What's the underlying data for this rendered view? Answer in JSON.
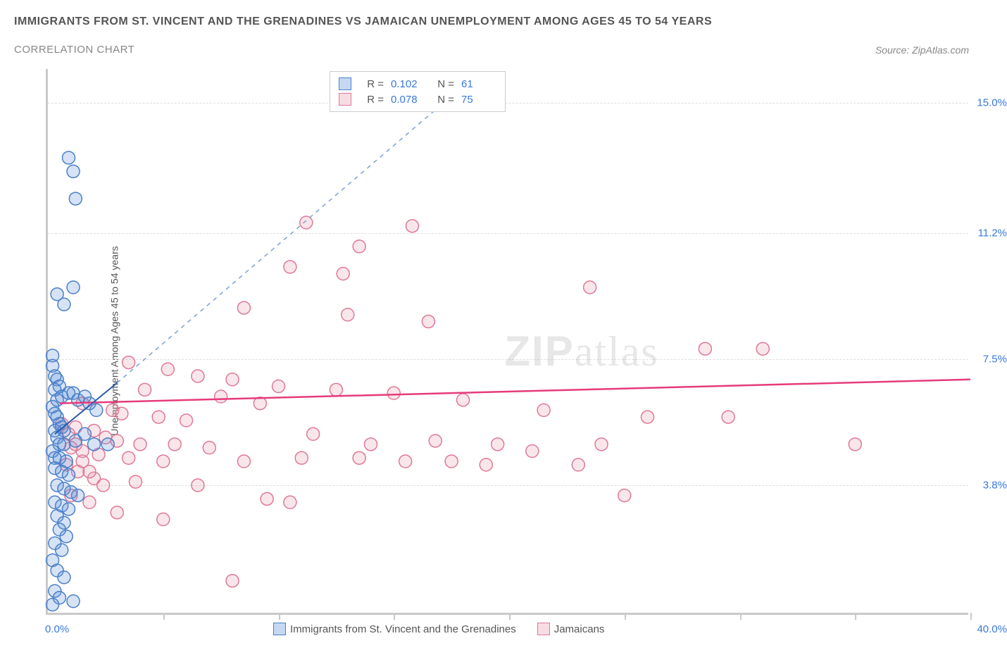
{
  "title": "IMMIGRANTS FROM ST. VINCENT AND THE GRENADINES VS JAMAICAN UNEMPLOYMENT AMONG AGES 45 TO 54 YEARS",
  "subtitle": "CORRELATION CHART",
  "source": "Source: ZipAtlas.com",
  "y_axis_label": "Unemployment Among Ages 45 to 54 years",
  "x_origin_label": "0.0%",
  "x_max_label": "40.0%",
  "watermark_bold": "ZIP",
  "watermark_light": "atlas",
  "chart": {
    "type": "scatter",
    "background_color": "#ffffff",
    "grid_color": "#dddddd",
    "axis_color": "#c9c9c9",
    "xlim": [
      0,
      40
    ],
    "ylim": [
      0,
      16
    ],
    "x_ticks": [
      0,
      5,
      10,
      15,
      20,
      25,
      30,
      35,
      40
    ],
    "y_grid": [
      {
        "value": 3.8,
        "label": "3.8%"
      },
      {
        "value": 7.5,
        "label": "7.5%"
      },
      {
        "value": 11.2,
        "label": "11.2%"
      },
      {
        "value": 15.0,
        "label": "15.0%"
      }
    ],
    "marker_radius": 9,
    "marker_stroke_width": 1.5,
    "marker_fill_opacity": 0.25
  },
  "series": {
    "svg": {
      "label": "Immigrants from St. Vincent and the Grenadines",
      "color": "#5b8fd6",
      "stroke": "#4b7fc9",
      "R": "0.102",
      "N": "61",
      "trend": {
        "x1": 0.3,
        "y1": 5.3,
        "x2": 3.0,
        "y2": 6.8,
        "dash_x2": 18,
        "dash_y2": 15.5,
        "solid_color": "#2a5aa8",
        "dash_color": "#7aa0d4",
        "width": 2
      },
      "points": [
        [
          0.9,
          13.4
        ],
        [
          1.1,
          13.0
        ],
        [
          1.2,
          12.2
        ],
        [
          0.4,
          9.4
        ],
        [
          1.1,
          9.6
        ],
        [
          0.7,
          9.1
        ],
        [
          0.2,
          7.6
        ],
        [
          0.2,
          7.3
        ],
        [
          0.3,
          7.0
        ],
        [
          0.4,
          6.9
        ],
        [
          0.5,
          6.7
        ],
        [
          0.3,
          6.6
        ],
        [
          0.4,
          6.3
        ],
        [
          0.6,
          6.4
        ],
        [
          0.9,
          6.5
        ],
        [
          1.1,
          6.5
        ],
        [
          1.3,
          6.3
        ],
        [
          1.6,
          6.4
        ],
        [
          1.8,
          6.2
        ],
        [
          2.1,
          6.0
        ],
        [
          0.2,
          6.1
        ],
        [
          0.3,
          5.9
        ],
        [
          0.4,
          5.8
        ],
        [
          0.5,
          5.6
        ],
        [
          0.6,
          5.5
        ],
        [
          0.7,
          5.4
        ],
        [
          0.3,
          5.4
        ],
        [
          0.4,
          5.2
        ],
        [
          0.5,
          5.0
        ],
        [
          0.7,
          5.0
        ],
        [
          1.2,
          5.1
        ],
        [
          1.6,
          5.3
        ],
        [
          2.0,
          5.0
        ],
        [
          2.6,
          5.0
        ],
        [
          0.2,
          4.8
        ],
        [
          0.3,
          4.6
        ],
        [
          0.5,
          4.6
        ],
        [
          0.8,
          4.5
        ],
        [
          0.3,
          4.3
        ],
        [
          0.6,
          4.2
        ],
        [
          0.9,
          4.1
        ],
        [
          0.4,
          3.8
        ],
        [
          0.7,
          3.7
        ],
        [
          1.0,
          3.6
        ],
        [
          1.3,
          3.5
        ],
        [
          0.3,
          3.3
        ],
        [
          0.6,
          3.2
        ],
        [
          0.9,
          3.1
        ],
        [
          0.4,
          2.9
        ],
        [
          0.7,
          2.7
        ],
        [
          0.5,
          2.5
        ],
        [
          0.8,
          2.3
        ],
        [
          0.3,
          2.1
        ],
        [
          0.6,
          1.9
        ],
        [
          0.2,
          1.6
        ],
        [
          0.4,
          1.3
        ],
        [
          0.7,
          1.1
        ],
        [
          0.3,
          0.7
        ],
        [
          0.5,
          0.5
        ],
        [
          0.2,
          0.3
        ],
        [
          1.1,
          0.4
        ]
      ]
    },
    "jam": {
      "label": "Jamaicans",
      "color": "#e89bb0",
      "stroke": "#e07896",
      "R": "0.078",
      "N": "75",
      "trend": {
        "x1": 0.5,
        "y1": 6.2,
        "x2": 40,
        "y2": 6.9,
        "solid_color": "#e63b7a",
        "width": 2.5
      },
      "points": [
        [
          11.2,
          11.5
        ],
        [
          13.5,
          10.8
        ],
        [
          15.8,
          11.4
        ],
        [
          10.5,
          10.2
        ],
        [
          12.8,
          10.0
        ],
        [
          23.5,
          9.6
        ],
        [
          8.5,
          9.0
        ],
        [
          13.0,
          8.8
        ],
        [
          16.5,
          8.6
        ],
        [
          28.5,
          7.8
        ],
        [
          31.0,
          7.8
        ],
        [
          3.5,
          7.4
        ],
        [
          5.2,
          7.2
        ],
        [
          6.5,
          7.0
        ],
        [
          8.0,
          6.9
        ],
        [
          10.0,
          6.7
        ],
        [
          4.2,
          6.6
        ],
        [
          7.5,
          6.4
        ],
        [
          9.2,
          6.2
        ],
        [
          12.5,
          6.6
        ],
        [
          15.0,
          6.5
        ],
        [
          18.0,
          6.3
        ],
        [
          1.5,
          6.2
        ],
        [
          2.8,
          6.0
        ],
        [
          3.2,
          5.9
        ],
        [
          4.8,
          5.8
        ],
        [
          6.0,
          5.7
        ],
        [
          21.5,
          6.0
        ],
        [
          26.0,
          5.8
        ],
        [
          29.5,
          5.8
        ],
        [
          1.2,
          5.5
        ],
        [
          2.0,
          5.4
        ],
        [
          2.5,
          5.2
        ],
        [
          3.0,
          5.1
        ],
        [
          4.0,
          5.0
        ],
        [
          5.5,
          5.0
        ],
        [
          7.0,
          4.9
        ],
        [
          11.5,
          5.3
        ],
        [
          14.0,
          5.0
        ],
        [
          16.8,
          5.1
        ],
        [
          19.5,
          5.0
        ],
        [
          24.0,
          5.0
        ],
        [
          21.0,
          4.8
        ],
        [
          35.0,
          5.0
        ],
        [
          1.0,
          4.9
        ],
        [
          1.5,
          4.8
        ],
        [
          2.2,
          4.7
        ],
        [
          3.5,
          4.6
        ],
        [
          5.0,
          4.5
        ],
        [
          8.5,
          4.5
        ],
        [
          11.0,
          4.6
        ],
        [
          13.5,
          4.6
        ],
        [
          15.5,
          4.5
        ],
        [
          17.5,
          4.5
        ],
        [
          19.0,
          4.4
        ],
        [
          23.0,
          4.4
        ],
        [
          0.8,
          4.4
        ],
        [
          1.3,
          4.2
        ],
        [
          2.0,
          4.0
        ],
        [
          3.8,
          3.9
        ],
        [
          6.5,
          3.8
        ],
        [
          9.5,
          3.4
        ],
        [
          10.5,
          3.3
        ],
        [
          25.0,
          3.5
        ],
        [
          1.0,
          3.5
        ],
        [
          1.8,
          3.3
        ],
        [
          3.0,
          3.0
        ],
        [
          5.0,
          2.8
        ],
        [
          8.0,
          1.0
        ],
        [
          0.6,
          5.6
        ],
        [
          0.9,
          5.3
        ],
        [
          1.2,
          5.0
        ],
        [
          1.5,
          4.5
        ],
        [
          1.8,
          4.2
        ],
        [
          2.4,
          3.8
        ]
      ]
    }
  },
  "stats_box": {
    "r_label": "R =",
    "n_label": "N ="
  },
  "bottom_legend": {
    "item1": "Immigrants from St. Vincent and the Grenadines",
    "item2": "Jamaicans"
  }
}
